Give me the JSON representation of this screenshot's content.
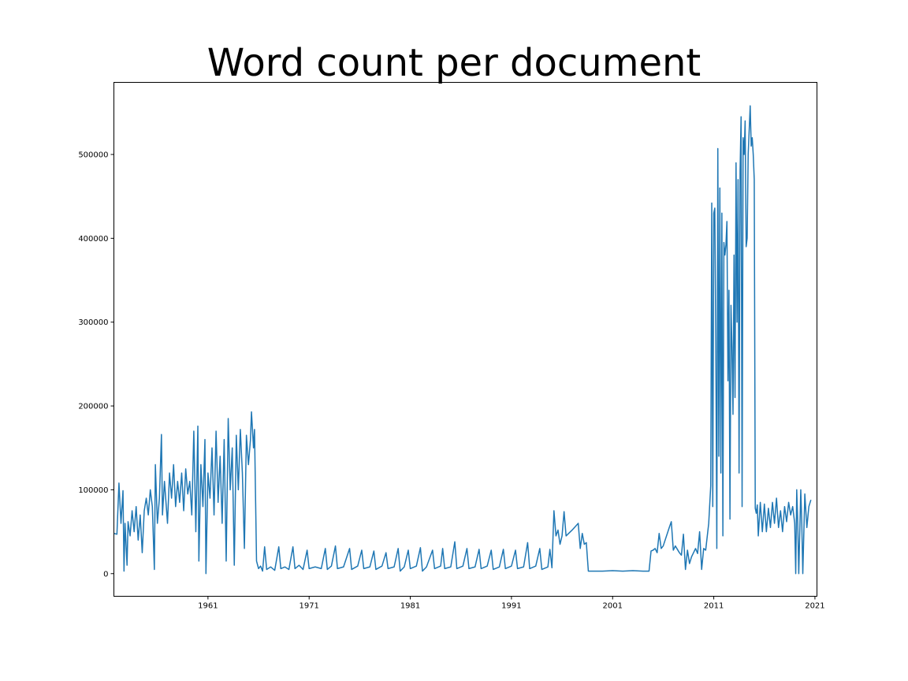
{
  "chart_data": {
    "type": "line",
    "title": "Word count per document",
    "xlabel": "",
    "ylabel": "",
    "xlim": [
      1951.7,
      2021.2
    ],
    "ylim": [
      -27000,
      586000
    ],
    "x_ticks": [
      1961,
      1971,
      1981,
      1991,
      2001,
      2011,
      2021
    ],
    "y_ticks": [
      0,
      100000,
      200000,
      300000,
      400000,
      500000
    ],
    "grid": false,
    "legend": "none",
    "series": [
      {
        "color": "#1f77b4",
        "points": [
          [
            1951.7,
            48000
          ],
          [
            1952.0,
            47000
          ],
          [
            1952.2,
            108000
          ],
          [
            1952.4,
            60000
          ],
          [
            1952.6,
            99000
          ],
          [
            1952.7,
            3000
          ],
          [
            1952.8,
            60000
          ],
          [
            1953.0,
            10000
          ],
          [
            1953.1,
            62000
          ],
          [
            1953.3,
            45000
          ],
          [
            1953.5,
            75000
          ],
          [
            1953.7,
            50000
          ],
          [
            1953.9,
            80000
          ],
          [
            1954.1,
            40000
          ],
          [
            1954.3,
            70000
          ],
          [
            1954.5,
            25000
          ],
          [
            1954.7,
            75000
          ],
          [
            1954.9,
            90000
          ],
          [
            1955.1,
            70000
          ],
          [
            1955.3,
            100000
          ],
          [
            1955.5,
            80000
          ],
          [
            1955.7,
            5000
          ],
          [
            1955.8,
            130000
          ],
          [
            1956.0,
            60000
          ],
          [
            1956.2,
            90000
          ],
          [
            1956.4,
            166000
          ],
          [
            1956.5,
            70000
          ],
          [
            1956.7,
            110000
          ],
          [
            1957.0,
            60000
          ],
          [
            1957.2,
            120000
          ],
          [
            1957.4,
            90000
          ],
          [
            1957.6,
            130000
          ],
          [
            1957.8,
            80000
          ],
          [
            1958.0,
            110000
          ],
          [
            1958.2,
            85000
          ],
          [
            1958.4,
            120000
          ],
          [
            1958.6,
            75000
          ],
          [
            1958.8,
            125000
          ],
          [
            1959.0,
            95000
          ],
          [
            1959.2,
            110000
          ],
          [
            1959.4,
            70000
          ],
          [
            1959.6,
            170000
          ],
          [
            1959.8,
            50000
          ],
          [
            1960.0,
            176000
          ],
          [
            1960.1,
            15000
          ],
          [
            1960.3,
            130000
          ],
          [
            1960.5,
            80000
          ],
          [
            1960.7,
            160000
          ],
          [
            1960.8,
            0
          ],
          [
            1961.0,
            120000
          ],
          [
            1961.2,
            90000
          ],
          [
            1961.4,
            150000
          ],
          [
            1961.6,
            70000
          ],
          [
            1961.8,
            170000
          ],
          [
            1962.0,
            85000
          ],
          [
            1962.2,
            140000
          ],
          [
            1962.4,
            60000
          ],
          [
            1962.6,
            160000
          ],
          [
            1962.8,
            15000
          ],
          [
            1963.0,
            185000
          ],
          [
            1963.2,
            100000
          ],
          [
            1963.4,
            150000
          ],
          [
            1963.6,
            10000
          ],
          [
            1963.8,
            165000
          ],
          [
            1964.0,
            100000
          ],
          [
            1964.2,
            172000
          ],
          [
            1964.4,
            120000
          ],
          [
            1964.6,
            30000
          ],
          [
            1964.8,
            165000
          ],
          [
            1965.0,
            130000
          ],
          [
            1965.2,
            160000
          ],
          [
            1965.3,
            193000
          ],
          [
            1965.5,
            150000
          ],
          [
            1965.6,
            172000
          ],
          [
            1965.8,
            15000
          ],
          [
            1966.0,
            6000
          ],
          [
            1966.2,
            9000
          ],
          [
            1966.4,
            3000
          ],
          [
            1966.6,
            32000
          ],
          [
            1966.8,
            5000
          ],
          [
            1967.2,
            8000
          ],
          [
            1967.6,
            4000
          ],
          [
            1968.0,
            32000
          ],
          [
            1968.2,
            6000
          ],
          [
            1968.6,
            8000
          ],
          [
            1969.0,
            5000
          ],
          [
            1969.4,
            32000
          ],
          [
            1969.6,
            6000
          ],
          [
            1970.0,
            10000
          ],
          [
            1970.4,
            5000
          ],
          [
            1970.8,
            28000
          ],
          [
            1971.0,
            6000
          ],
          [
            1971.6,
            8000
          ],
          [
            1972.2,
            6000
          ],
          [
            1972.6,
            30000
          ],
          [
            1972.8,
            5000
          ],
          [
            1973.2,
            9000
          ],
          [
            1973.6,
            33000
          ],
          [
            1973.8,
            6000
          ],
          [
            1974.4,
            8000
          ],
          [
            1975.0,
            30000
          ],
          [
            1975.2,
            5000
          ],
          [
            1975.8,
            9000
          ],
          [
            1976.2,
            28000
          ],
          [
            1976.4,
            6000
          ],
          [
            1977.0,
            8000
          ],
          [
            1977.4,
            27000
          ],
          [
            1977.6,
            5000
          ],
          [
            1978.2,
            9000
          ],
          [
            1978.6,
            25000
          ],
          [
            1978.8,
            6000
          ],
          [
            1979.4,
            8000
          ],
          [
            1979.8,
            30000
          ],
          [
            1980.0,
            3000
          ],
          [
            1980.4,
            8000
          ],
          [
            1980.8,
            28000
          ],
          [
            1981.0,
            6000
          ],
          [
            1981.6,
            9000
          ],
          [
            1982.0,
            31000
          ],
          [
            1982.2,
            3000
          ],
          [
            1982.6,
            8000
          ],
          [
            1983.2,
            28000
          ],
          [
            1983.4,
            6000
          ],
          [
            1984.0,
            9000
          ],
          [
            1984.2,
            30000
          ],
          [
            1984.4,
            6000
          ],
          [
            1985.0,
            8000
          ],
          [
            1985.4,
            38000
          ],
          [
            1985.6,
            6000
          ],
          [
            1986.2,
            9000
          ],
          [
            1986.6,
            30000
          ],
          [
            1986.8,
            6000
          ],
          [
            1987.4,
            8000
          ],
          [
            1987.8,
            29000
          ],
          [
            1988.0,
            6000
          ],
          [
            1988.6,
            9000
          ],
          [
            1989.0,
            28000
          ],
          [
            1989.2,
            5000
          ],
          [
            1989.8,
            8000
          ],
          [
            1990.2,
            29000
          ],
          [
            1990.4,
            6000
          ],
          [
            1991.0,
            9000
          ],
          [
            1991.4,
            28000
          ],
          [
            1991.6,
            6000
          ],
          [
            1992.2,
            8000
          ],
          [
            1992.6,
            37000
          ],
          [
            1992.8,
            6000
          ],
          [
            1993.4,
            9000
          ],
          [
            1993.8,
            30000
          ],
          [
            1994.0,
            5000
          ],
          [
            1994.6,
            8000
          ],
          [
            1994.8,
            29000
          ],
          [
            1995.0,
            7000
          ],
          [
            1995.2,
            75000
          ],
          [
            1995.4,
            45000
          ],
          [
            1995.6,
            52000
          ],
          [
            1995.8,
            35000
          ],
          [
            1996.0,
            45000
          ],
          [
            1996.2,
            74000
          ],
          [
            1996.4,
            45000
          ],
          [
            1997.0,
            52000
          ],
          [
            1997.6,
            60000
          ],
          [
            1997.8,
            30000
          ],
          [
            1998.0,
            48000
          ],
          [
            1998.2,
            35000
          ],
          [
            1998.4,
            37000
          ],
          [
            1998.6,
            3000
          ],
          [
            1999.0,
            3000
          ],
          [
            2000.0,
            3000
          ],
          [
            2001.0,
            3500
          ],
          [
            2002.0,
            3000
          ],
          [
            2003.0,
            3500
          ],
          [
            2004.0,
            3000
          ],
          [
            2004.6,
            3000
          ],
          [
            2004.8,
            27000
          ],
          [
            2005.0,
            28000
          ],
          [
            2005.2,
            30000
          ],
          [
            2005.4,
            25000
          ],
          [
            2005.6,
            48000
          ],
          [
            2005.8,
            30000
          ],
          [
            2006.0,
            33000
          ],
          [
            2006.6,
            55000
          ],
          [
            2006.8,
            62000
          ],
          [
            2007.0,
            28000
          ],
          [
            2007.2,
            33000
          ],
          [
            2007.6,
            25000
          ],
          [
            2007.8,
            22000
          ],
          [
            2008.0,
            47000
          ],
          [
            2008.2,
            5000
          ],
          [
            2008.4,
            28000
          ],
          [
            2008.6,
            12000
          ],
          [
            2008.8,
            20000
          ],
          [
            2009.0,
            25000
          ],
          [
            2009.2,
            30000
          ],
          [
            2009.4,
            24000
          ],
          [
            2009.6,
            50000
          ],
          [
            2009.8,
            5000
          ],
          [
            2010.0,
            30000
          ],
          [
            2010.2,
            28000
          ],
          [
            2010.5,
            60000
          ],
          [
            2010.7,
            105000
          ],
          [
            2010.8,
            442000
          ],
          [
            2010.9,
            80000
          ],
          [
            2011.0,
            430000
          ],
          [
            2011.1,
            436000
          ],
          [
            2011.2,
            277000
          ],
          [
            2011.3,
            30000
          ],
          [
            2011.4,
            507000
          ],
          [
            2011.5,
            140000
          ],
          [
            2011.6,
            460000
          ],
          [
            2011.7,
            120000
          ],
          [
            2011.8,
            430000
          ],
          [
            2011.9,
            45000
          ],
          [
            2012.0,
            395000
          ],
          [
            2012.1,
            380000
          ],
          [
            2012.2,
            392000
          ],
          [
            2012.3,
            420000
          ],
          [
            2012.4,
            230000
          ],
          [
            2012.5,
            338000
          ],
          [
            2012.6,
            65000
          ],
          [
            2012.7,
            320000
          ],
          [
            2012.8,
            270000
          ],
          [
            2012.9,
            190000
          ],
          [
            2013.0,
            380000
          ],
          [
            2013.1,
            210000
          ],
          [
            2013.2,
            490000
          ],
          [
            2013.3,
            300000
          ],
          [
            2013.4,
            470000
          ],
          [
            2013.5,
            120000
          ],
          [
            2013.6,
            480000
          ],
          [
            2013.7,
            545000
          ],
          [
            2013.8,
            80000
          ],
          [
            2013.9,
            520000
          ],
          [
            2014.0,
            500000
          ],
          [
            2014.1,
            540000
          ],
          [
            2014.2,
            390000
          ],
          [
            2014.3,
            400000
          ],
          [
            2014.4,
            500000
          ],
          [
            2014.6,
            558000
          ],
          [
            2014.7,
            510000
          ],
          [
            2014.8,
            520000
          ],
          [
            2014.9,
            500000
          ],
          [
            2015.0,
            470000
          ],
          [
            2015.1,
            78000
          ],
          [
            2015.2,
            72000
          ],
          [
            2015.3,
            82000
          ],
          [
            2015.4,
            45000
          ],
          [
            2015.6,
            85000
          ],
          [
            2015.8,
            50000
          ],
          [
            2016.0,
            83000
          ],
          [
            2016.2,
            50000
          ],
          [
            2016.4,
            78000
          ],
          [
            2016.6,
            55000
          ],
          [
            2016.8,
            85000
          ],
          [
            2017.0,
            60000
          ],
          [
            2017.2,
            90000
          ],
          [
            2017.4,
            55000
          ],
          [
            2017.6,
            75000
          ],
          [
            2017.8,
            50000
          ],
          [
            2018.0,
            80000
          ],
          [
            2018.2,
            62000
          ],
          [
            2018.4,
            85000
          ],
          [
            2018.6,
            70000
          ],
          [
            2018.8,
            80000
          ],
          [
            2019.0,
            60000
          ],
          [
            2019.1,
            0
          ],
          [
            2019.2,
            100000
          ],
          [
            2019.3,
            60000
          ],
          [
            2019.4,
            0
          ],
          [
            2019.6,
            100000
          ],
          [
            2019.7,
            60000
          ],
          [
            2019.8,
            0
          ],
          [
            2020.0,
            95000
          ],
          [
            2020.2,
            55000
          ],
          [
            2020.4,
            80000
          ],
          [
            2020.6,
            88000
          ]
        ]
      }
    ]
  }
}
